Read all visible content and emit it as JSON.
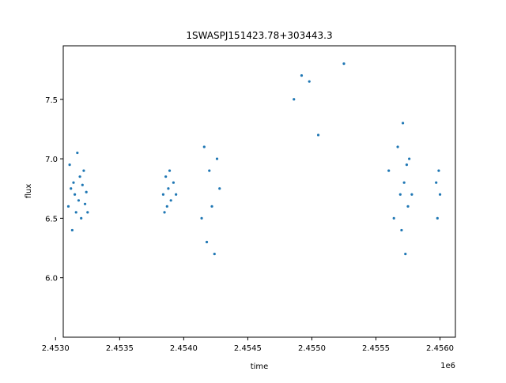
{
  "chart_data": {
    "type": "scatter",
    "title": "1SWASPJ151423.78+303443.3",
    "xlabel": "time",
    "ylabel": "flux",
    "x_offset_label": "1e6",
    "xlim": [
      2.45306,
      2.45612
    ],
    "ylim": [
      5.5,
      7.95
    ],
    "x_ticks": [
      2.453,
      2.4535,
      2.454,
      2.4545,
      2.455,
      2.4555,
      2.456
    ],
    "x_tick_labels": [
      "2.4530",
      "2.4535",
      "2.4540",
      "2.4545",
      "2.4550",
      "2.4555",
      "2.4560"
    ],
    "y_ticks": [
      6.0,
      6.5,
      7.0,
      7.5
    ],
    "y_tick_labels": [
      "6.0",
      "6.5",
      "7.0",
      "7.5"
    ],
    "grid": false,
    "legend": false,
    "marker_color": "#1f77b4",
    "series": [
      {
        "x": [
          2.4531,
          2.45311,
          2.45312,
          2.45313,
          2.45314,
          2.45315,
          2.45316,
          2.45317,
          2.45318,
          2.45319,
          2.4532,
          2.45321,
          2.45322,
          2.45323,
          2.45324,
          2.45325,
          2.45384,
          2.45385,
          2.45386,
          2.45387,
          2.45388,
          2.45389,
          2.4539,
          2.45392,
          2.45394,
          2.45414,
          2.45416,
          2.45418,
          2.4542,
          2.45422,
          2.45424,
          2.45426,
          2.45428,
          2.45486,
          2.45492,
          2.45498,
          2.45505,
          2.45525,
          2.4556,
          2.45564,
          2.45567,
          2.45569,
          2.4557,
          2.45571,
          2.45572,
          2.45573,
          2.45574,
          2.45575,
          2.45576,
          2.45578,
          2.45597,
          2.45598,
          2.45599,
          2.456
        ],
        "y": [
          6.6,
          6.95,
          6.75,
          6.4,
          6.8,
          6.7,
          6.55,
          7.05,
          6.65,
          6.85,
          6.5,
          6.78,
          6.9,
          6.62,
          6.72,
          6.55,
          6.7,
          6.55,
          6.85,
          6.6,
          6.75,
          6.9,
          6.65,
          6.8,
          6.7,
          6.5,
          7.1,
          6.3,
          6.9,
          6.6,
          6.2,
          7.0,
          6.75,
          7.5,
          7.7,
          7.65,
          7.2,
          7.8,
          6.9,
          6.5,
          7.1,
          6.7,
          6.4,
          7.3,
          6.8,
          6.2,
          6.95,
          6.6,
          7.0,
          6.7,
          6.8,
          6.5,
          6.9,
          6.7
        ]
      }
    ]
  }
}
